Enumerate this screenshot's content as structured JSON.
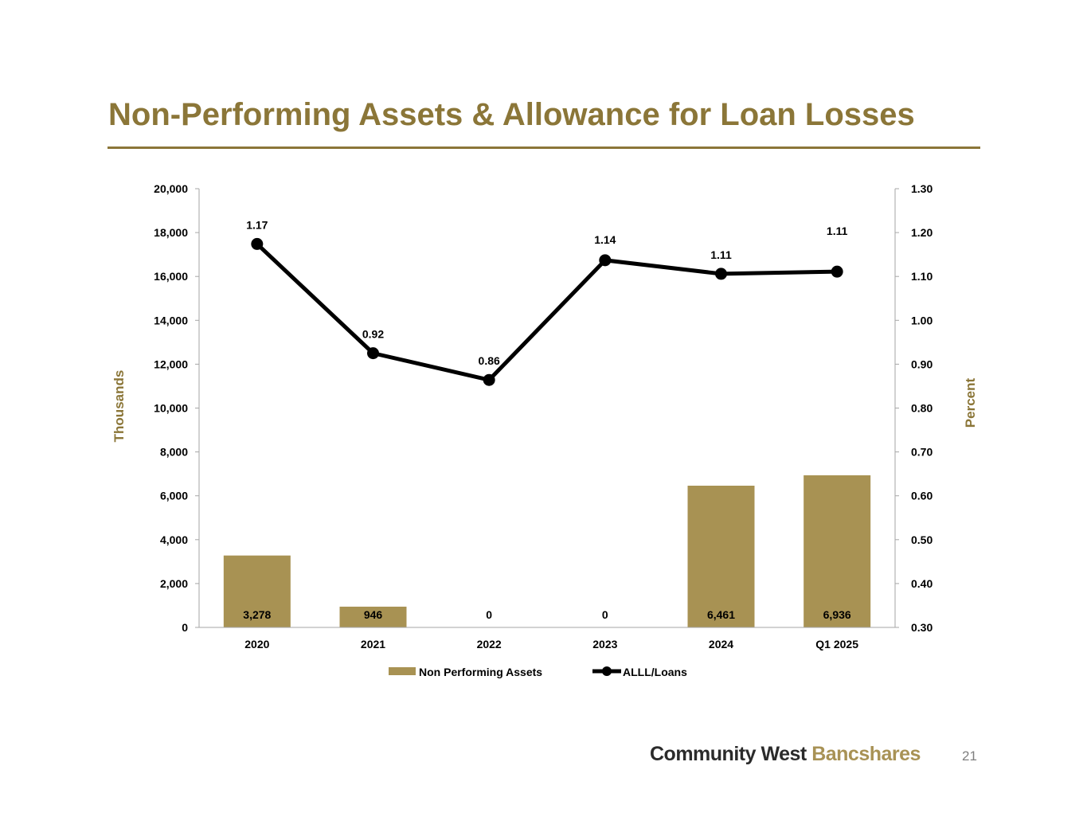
{
  "slide": {
    "title": "Non-Performing Assets & Allowance for Loan Losses",
    "page_number": "21"
  },
  "logo": {
    "word1": "Community West",
    "word2": "Bancshares",
    "word1_color": "#2b2b2b",
    "word2_color": "#a89255"
  },
  "colors": {
    "accent": "#8b7638",
    "bar": "#a89253",
    "line": "#000000",
    "axis": "#a6a6a6",
    "text": "#000000"
  },
  "chart_data": {
    "type": "bar",
    "title": "",
    "categories": [
      "2020",
      "2021",
      "2022",
      "2023",
      "2024",
      "Q1 2025"
    ],
    "series": [
      {
        "name": "Non Performing Assets",
        "type": "bar",
        "axis": "left",
        "values": [
          3278,
          946,
          0,
          0,
          6461,
          6936
        ],
        "labels": [
          "3,278",
          "946",
          "0",
          "0",
          "6,461",
          "6,936"
        ]
      },
      {
        "name": "ALLL/Loans",
        "type": "line",
        "axis": "right",
        "values": [
          1.17,
          0.92,
          0.86,
          1.14,
          1.11,
          1.11
        ],
        "plotted": [
          1.174,
          0.925,
          0.864,
          1.137,
          1.106,
          1.111
        ],
        "labels": [
          "1.17",
          "0.92",
          "0.86",
          "1.14",
          "1.11",
          "1.11"
        ]
      }
    ],
    "y_left": {
      "label": "Thousands",
      "ylim": [
        0,
        20000
      ],
      "ticks": [
        "0",
        "2,000",
        "4,000",
        "6,000",
        "8,000",
        "10,000",
        "12,000",
        "14,000",
        "16,000",
        "18,000",
        "20,000"
      ]
    },
    "y_right": {
      "label": "Percent",
      "ylim": [
        0.3,
        1.3
      ],
      "ticks": [
        "0.30",
        "0.40",
        "0.50",
        "0.60",
        "0.70",
        "0.80",
        "0.90",
        "1.00",
        "1.10",
        "1.20",
        "1.30"
      ]
    },
    "grid": false,
    "legend_position": "bottom"
  }
}
